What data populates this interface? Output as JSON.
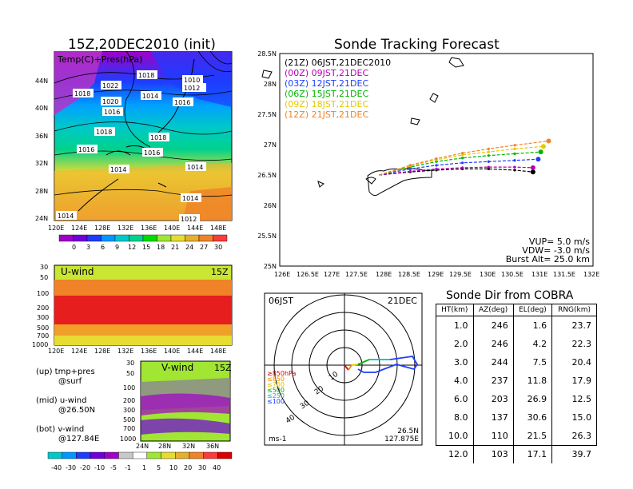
{
  "map_panel": {
    "title": "15Z,20DEC2010 (init)",
    "label": "Temp(C)+Pres(hPa)",
    "lat_ticks": [
      "44N",
      "40N",
      "36N",
      "32N",
      "28N",
      "24N"
    ],
    "lon_ticks": [
      "120E",
      "124E",
      "128E",
      "132E",
      "136E",
      "140E",
      "144E",
      "148E"
    ],
    "isobar_labels": [
      "1018",
      "1022",
      "1018",
      "1010",
      "1012",
      "1020",
      "1014",
      "1016",
      "1016",
      "1018",
      "1018",
      "1016",
      "1016",
      "1014",
      "1014",
      "1014",
      "1012",
      "1014",
      "1018"
    ],
    "colorbar_ticks": [
      "0",
      "3",
      "6",
      "9",
      "12",
      "15",
      "18",
      "21",
      "24",
      "27",
      "30"
    ],
    "colorbar_colors": [
      "#a000c8",
      "#6e00dc",
      "#1e3cff",
      "#0096ff",
      "#00c8c8",
      "#00d28c",
      "#00dc00",
      "#a0e632",
      "#e6dc32",
      "#e6af2d",
      "#f08228",
      "#fa3c3c"
    ]
  },
  "uwind_panel": {
    "label": "U-wind",
    "time": "15Z",
    "p_ticks": [
      "30",
      "50",
      "100",
      "200",
      "300",
      "500",
      "700",
      "1000"
    ],
    "lon_ticks": [
      "120E",
      "124E",
      "128E",
      "132E",
      "136E",
      "140E",
      "144E",
      "148E"
    ]
  },
  "vwind_panel": {
    "label": "V-wind",
    "time": "15Z",
    "p_ticks": [
      "30",
      "50",
      "100",
      "200",
      "300",
      "500",
      "700",
      "1000"
    ],
    "lat_ticks": [
      "24N",
      "28N",
      "32N",
      "36N"
    ],
    "colorbar_ticks": [
      "-40",
      "-30",
      "-20",
      "-10",
      "-5",
      "-1",
      "1",
      "5",
      "10",
      "20",
      "30",
      "40"
    ],
    "colorbar_colors": [
      "#00c8c8",
      "#0096ff",
      "#1e3cff",
      "#6e00dc",
      "#a000c8",
      "#c8c8c8",
      "#ffffff",
      "#a0e632",
      "#e6dc32",
      "#e6af2d",
      "#f08228",
      "#fa3c3c",
      "#dc0000"
    ]
  },
  "panel_notes": {
    "up": "(up) tmp+pres",
    "up2": "@surf",
    "mid": "(mid) u-wind",
    "mid2": "@26.50N",
    "bot": "(bot) v-wind",
    "bot2": "@127.84E"
  },
  "tracking": {
    "title": "Sonde Tracking Forecast",
    "lat_ticks": [
      "28.5N",
      "28N",
      "27.5N",
      "27N",
      "26.5N",
      "26N",
      "25.5N",
      "25N"
    ],
    "lon_ticks": [
      "126E",
      "126.5E",
      "127E",
      "127.5E",
      "128E",
      "128.5E",
      "129E",
      "129.5E",
      "130E",
      "130.5E",
      "131E",
      "131.5E",
      "132E"
    ],
    "vup": "VUP= 5.0 m/s",
    "vdw": "VDW= -3.0 m/s",
    "burst": "Burst Alt= 25.0 km"
  },
  "hodo": {
    "time": "06JST",
    "date": "21DEC",
    "unit": "ms-1",
    "lat": "26.5N",
    "lon": "127.875E",
    "ring_labels": [
      "10",
      "20",
      "30",
      "40"
    ],
    "levels": [
      "≥850hPa",
      "≤850",
      "≤700",
      "≤500",
      "≤250",
      "≤100"
    ],
    "level_colors": [
      "#e00000",
      "#f08c00",
      "#e6c800",
      "#00b400",
      "#00b4dc",
      "#1e3cff"
    ]
  },
  "cobra": {
    "title": "Sonde Dir from COBRA",
    "headers": [
      "HT(km)",
      "AZ(deg)",
      "EL(deg)",
      "RNG(km)"
    ],
    "rows": [
      [
        "1.0",
        "246",
        "1.6",
        "23.7"
      ],
      [
        "2.0",
        "246",
        "4.2",
        "22.3"
      ],
      [
        "3.0",
        "244",
        "7.5",
        "20.4"
      ],
      [
        "4.0",
        "237",
        "11.8",
        "17.9"
      ],
      [
        "6.0",
        "203",
        "26.9",
        "12.5"
      ],
      [
        "8.0",
        "137",
        "30.6",
        "15.0"
      ],
      [
        "10.0",
        "110",
        "21.5",
        "26.3"
      ],
      [
        "12.0",
        "103",
        "17.1",
        "39.7"
      ]
    ]
  },
  "chart_data": [
    {
      "type": "line",
      "title": "Sonde Tracking Forecast",
      "xlim": [
        126,
        132
      ],
      "ylim": [
        25,
        28.5
      ],
      "series": [
        {
          "name": "(21Z) 06JST,21DEC2010",
          "color": "#000000",
          "x": [
            127.9,
            128.5,
            129.0,
            129.5,
            130.0,
            130.5,
            130.85
          ],
          "y": [
            26.5,
            26.55,
            26.58,
            26.6,
            26.6,
            26.58,
            26.55
          ]
        },
        {
          "name": "(00Z) 09JST,21DEC",
          "color": "#b400b4",
          "x": [
            127.9,
            128.5,
            129.0,
            129.5,
            130.0,
            130.5,
            130.85
          ],
          "y": [
            26.5,
            26.56,
            26.6,
            26.62,
            26.63,
            26.63,
            26.62
          ]
        },
        {
          "name": "(03Z) 12JST,21DEC",
          "color": "#1e3cff",
          "x": [
            127.9,
            128.5,
            129.0,
            129.5,
            130.0,
            130.5,
            130.95
          ],
          "y": [
            26.5,
            26.6,
            26.66,
            26.7,
            26.72,
            26.74,
            26.76
          ]
        },
        {
          "name": "(06Z) 15JST,21DEC",
          "color": "#00b400",
          "x": [
            127.9,
            128.5,
            129.0,
            129.5,
            130.0,
            130.5,
            131.0
          ],
          "y": [
            26.5,
            26.63,
            26.72,
            26.78,
            26.82,
            26.85,
            26.88
          ]
        },
        {
          "name": "(09Z) 18JST,21DEC",
          "color": "#e6c800",
          "x": [
            127.9,
            128.5,
            129.0,
            129.5,
            130.0,
            130.5,
            131.05
          ],
          "y": [
            26.5,
            26.65,
            26.75,
            26.83,
            26.88,
            26.93,
            26.97
          ]
        },
        {
          "name": "(12Z) 21JST,21DEC",
          "color": "#f08228",
          "x": [
            127.9,
            128.5,
            129.0,
            129.5,
            130.0,
            130.5,
            131.15
          ],
          "y": [
            26.5,
            26.66,
            26.77,
            26.86,
            26.93,
            26.99,
            27.06
          ]
        }
      ]
    },
    {
      "type": "table",
      "title": "Sonde Dir from COBRA",
      "columns": [
        "HT(km)",
        "AZ(deg)",
        "EL(deg)",
        "RNG(km)"
      ],
      "rows": [
        [
          1.0,
          246,
          1.6,
          23.7
        ],
        [
          2.0,
          246,
          4.2,
          22.3
        ],
        [
          3.0,
          244,
          7.5,
          20.4
        ],
        [
          4.0,
          237,
          11.8,
          17.9
        ],
        [
          6.0,
          203,
          26.9,
          12.5
        ],
        [
          8.0,
          137,
          30.6,
          15.0
        ],
        [
          10.0,
          110,
          21.5,
          26.3
        ],
        [
          12.0,
          103,
          17.1,
          39.7
        ]
      ]
    }
  ]
}
